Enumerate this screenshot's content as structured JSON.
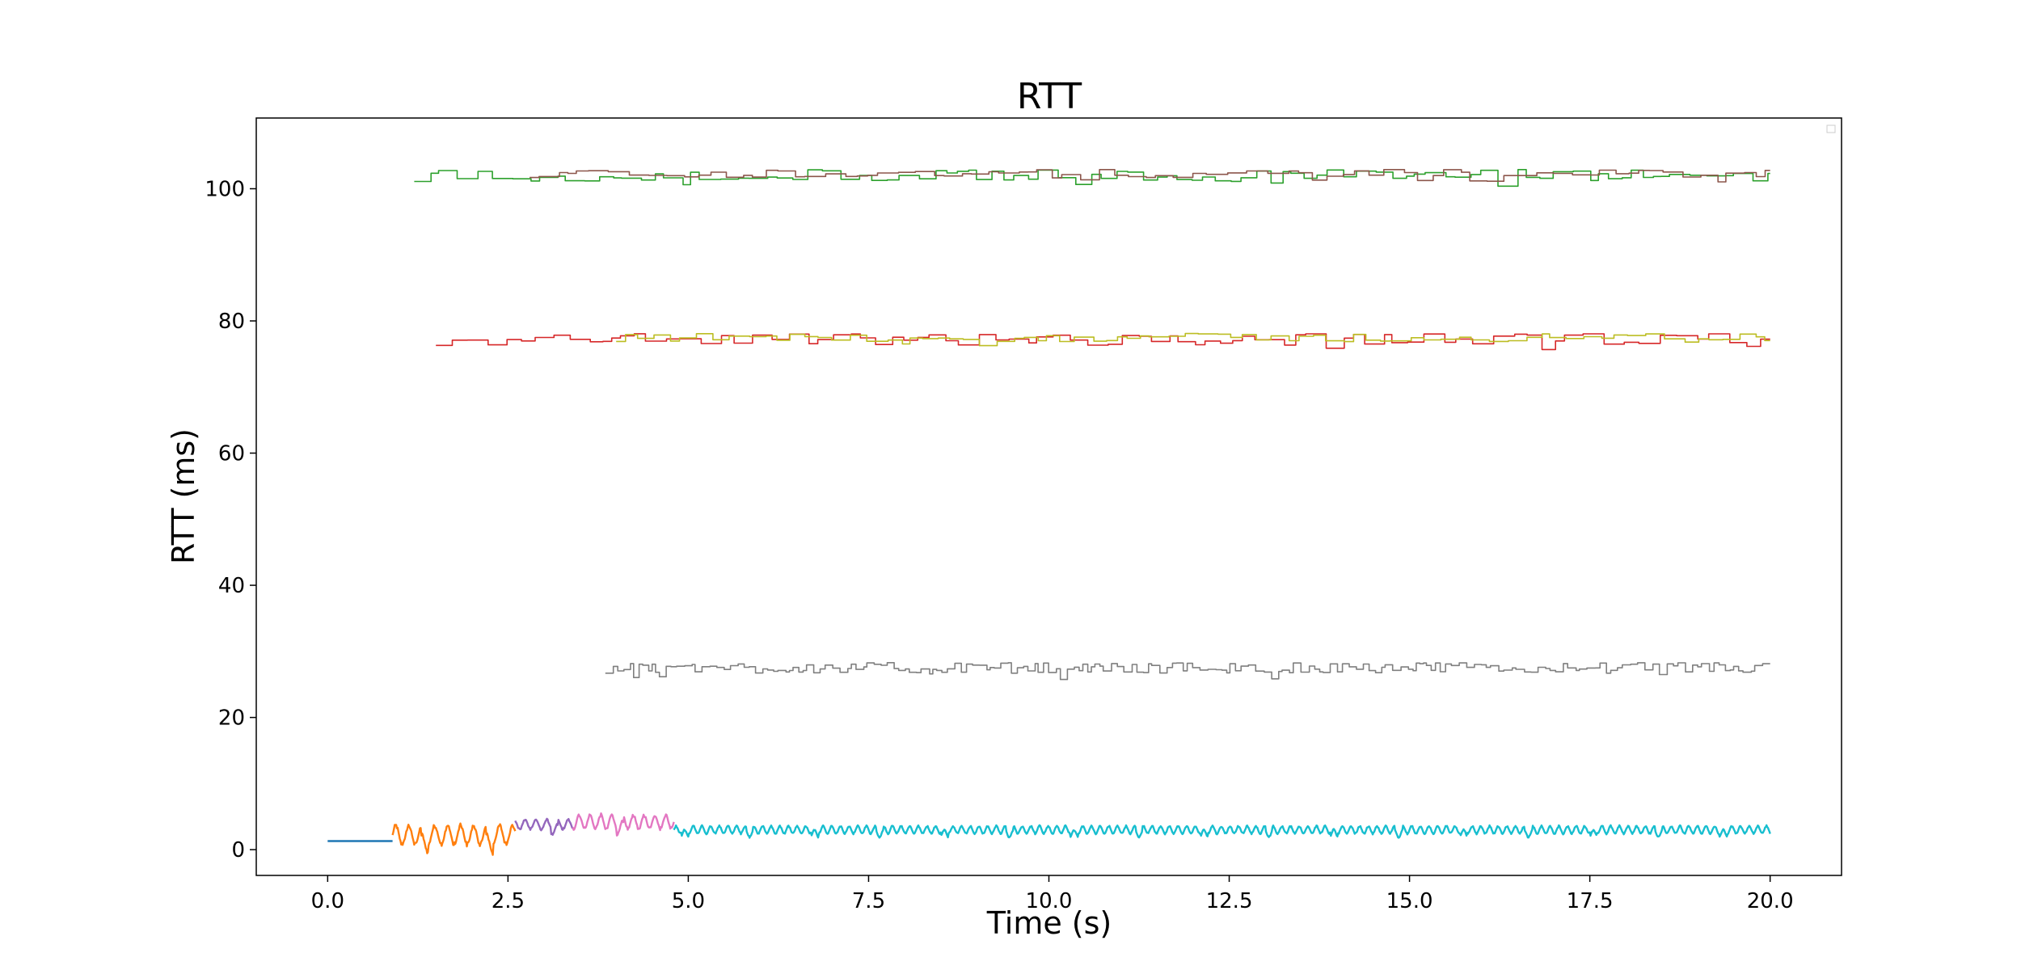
{
  "chart_data": {
    "type": "line",
    "title": "RTT",
    "xlabel": "Time (s)",
    "ylabel": "RTT (ms)",
    "xlim": [
      -0.99,
      20.99
    ],
    "ylim": [
      -3.9,
      110.7
    ],
    "xticks": [
      "0.0",
      "2.5",
      "5.0",
      "7.5",
      "10.0",
      "12.5",
      "15.0",
      "17.5",
      "20.0"
    ],
    "yticks": [
      "0",
      "20",
      "40",
      "60",
      "80",
      "100"
    ],
    "grid": false,
    "legend": "top-right (empty)",
    "series": [
      {
        "color": "#1f77b4",
        "style": "flat",
        "x_start": 0.0,
        "x_end": 0.9,
        "base": 1.3,
        "amp": 0.0,
        "period": 1.0
      },
      {
        "color": "#ff7f0e",
        "style": "osc",
        "x_start": 0.9,
        "x_end": 2.6,
        "base": 2.2,
        "amp": 1.8,
        "period": 0.18
      },
      {
        "color": "#9467bd",
        "style": "osc",
        "x_start": 2.6,
        "x_end": 3.4,
        "base": 3.8,
        "amp": 0.9,
        "period": 0.15
      },
      {
        "color": "#e377c2",
        "style": "osc",
        "x_start": 3.4,
        "x_end": 4.8,
        "base": 4.2,
        "amp": 1.3,
        "period": 0.15
      },
      {
        "color": "#17becf",
        "style": "osc",
        "x_start": 4.8,
        "x_end": 20.0,
        "base": 3.0,
        "amp": 0.7,
        "period": 0.12
      },
      {
        "color": "#7f7f7f",
        "style": "step",
        "x_start": 3.85,
        "x_end": 20.0,
        "base": 27.5,
        "amp": 0.8,
        "period": 0.08
      },
      {
        "color": "#d62728",
        "style": "step",
        "x_start": 1.5,
        "x_end": 20.0,
        "base": 77.2,
        "amp": 0.9,
        "period": 0.2
      },
      {
        "color": "#bcbd22",
        "style": "step",
        "x_start": 4.0,
        "x_end": 20.0,
        "base": 77.5,
        "amp": 0.6,
        "period": 0.2
      },
      {
        "color": "#2ca02c",
        "style": "step",
        "x_start": 1.2,
        "x_end": 20.0,
        "base": 102.0,
        "amp": 0.9,
        "period": 0.2
      },
      {
        "color": "#8c564b",
        "style": "step",
        "x_start": 2.8,
        "x_end": 20.0,
        "base": 102.3,
        "amp": 0.6,
        "period": 0.2
      }
    ]
  }
}
